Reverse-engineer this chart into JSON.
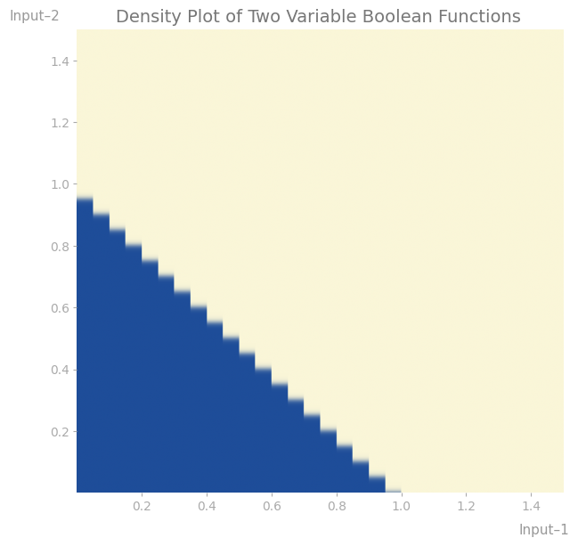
{
  "title": "Density Plot of Two Variable Boolean Functions",
  "xlabel": "Input–1",
  "ylabel": "Input–2",
  "xlim": [
    0,
    1.5
  ],
  "ylim": [
    0,
    1.5
  ],
  "xticks": [
    0.2,
    0.4,
    0.6,
    0.8,
    1.0,
    1.2,
    1.4
  ],
  "yticks": [
    0.2,
    0.4,
    0.6,
    0.8,
    1.0,
    1.2,
    1.4
  ],
  "color_low": "#1e4d99",
  "color_high": "#faf6d8",
  "grid_n": 800,
  "staircase_steps": 20,
  "transition_sharpness": 200.0,
  "title_fontsize": 14,
  "label_fontsize": 11,
  "tick_fontsize": 10,
  "background_color": "#ffffff",
  "title_color": "#777777",
  "tick_color": "#aaaaaa",
  "label_color": "#999999"
}
